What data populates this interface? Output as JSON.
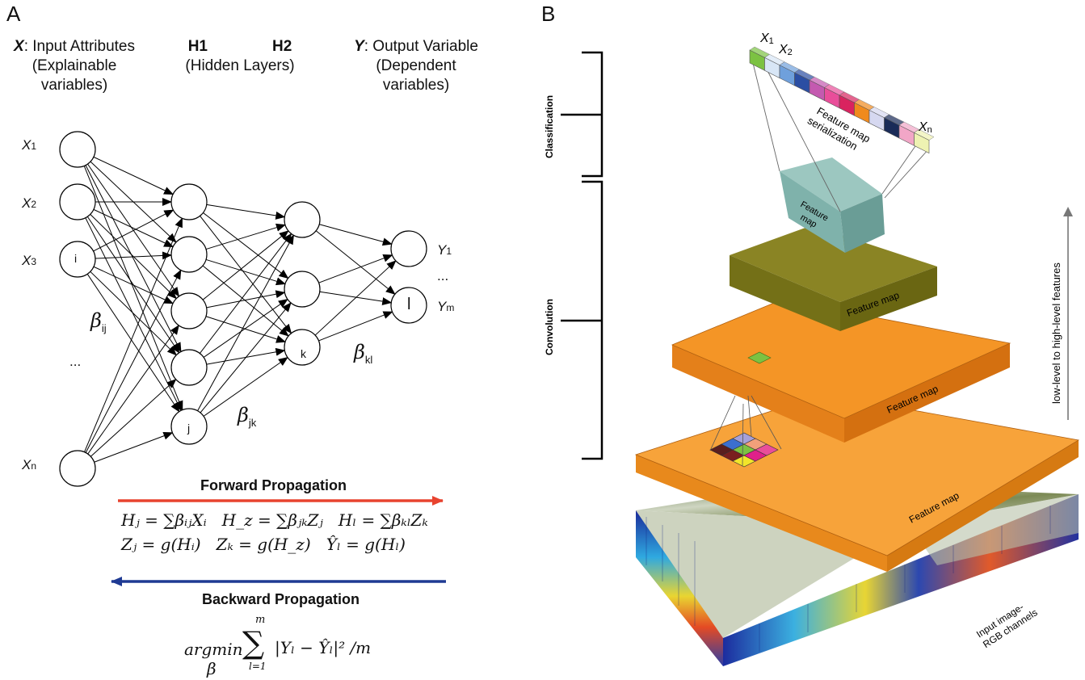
{
  "panel_a": {
    "letter": "A",
    "input_header": {
      "symbol": "X",
      "line1": ": Input Attributes",
      "line2": "(Explainable",
      "line3": "variables)"
    },
    "hidden_header": {
      "h1": "H1",
      "h2": "H2",
      "sub": "(Hidden Layers)"
    },
    "output_header": {
      "symbol": "Y",
      "line1": ": Output Variable",
      "line2": "(Dependent",
      "line3": "variables)"
    },
    "inputs": [
      {
        "name": "X",
        "sub": "1"
      },
      {
        "name": "X",
        "sub": "2"
      },
      {
        "name": "X",
        "sub": "3"
      },
      {
        "name": "X",
        "sub": "n"
      }
    ],
    "input_ellipsis": "...",
    "node_i": "i",
    "node_j": "j",
    "node_k": "k",
    "node_l": "l",
    "outputs": [
      {
        "name": "Y",
        "sub": "1"
      },
      {
        "name": "Y",
        "sub": "m"
      }
    ],
    "output_ellipsis": "...",
    "beta_ij": {
      "symbol": "β",
      "sub": "ij"
    },
    "beta_jk": {
      "symbol": "β",
      "sub": "jk"
    },
    "beta_kl": {
      "symbol": "β",
      "sub": "kl"
    },
    "forward_title": "Forward Propagation",
    "forward_eq_line1": "Hⱼ = ∑βᵢⱼXᵢ   H_z = ∑βⱼₖZⱼ   Hₗ = ∑βₖₗZₖ",
    "forward_eq_line2": "Zⱼ = g(Hᵢ)   Zₖ = g(H_z)   Ŷₗ = g(Hₗ)",
    "backward_title": "Backward Propagation",
    "loss": {
      "argmin": "argmin",
      "beta": "β",
      "upper": "m",
      "lower": "l=1",
      "body": "|Yₗ − Ŷₗ|² /m"
    },
    "colors": {
      "forward_arrow": "#e8432f",
      "backward_arrow": "#1f3a93"
    }
  },
  "panel_b": {
    "letter": "B",
    "classification_label": "Classification",
    "convolution_label": "Convolution",
    "vector_x1": "X",
    "vector_x1_sub": "1",
    "vector_x2": "X",
    "vector_x2_sub": "2",
    "vector_xn": "X",
    "vector_xn_sub": "n",
    "serialization_line1": "Feature map",
    "serialization_line2": "serialization",
    "teal_map_line1": "Feature",
    "teal_map_line2": "map",
    "olive_map": "Feature map",
    "orange_map_mid": "Feature map",
    "orange_map_bottom": "Feature map",
    "input_line1": "Input image-",
    "input_line2": "RGB channels",
    "side_arrow": "low-level to high-level features",
    "vector_colors": [
      "#7cc242",
      "#d8e6f6",
      "#6fa0dc",
      "#2b4ea3",
      "#c45ab0",
      "#e94e9a",
      "#d9235f",
      "#f08a1c",
      "#d6d8f0",
      "#1a2b58",
      "#f2a6c7",
      "#eef2b2"
    ],
    "colors": {
      "teal": "#7fb2ab",
      "olive": "#86801f",
      "orange": "#f4952a",
      "bracket": "#000000"
    }
  }
}
